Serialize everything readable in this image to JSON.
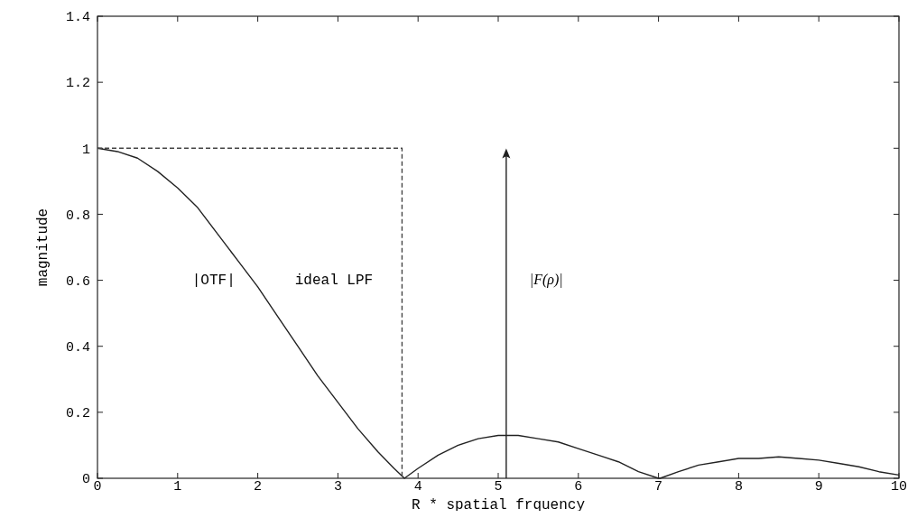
{
  "chart_data": {
    "type": "line",
    "xlabel": "R * spatial frquency",
    "ylabel": "magnitude",
    "xlim": [
      0,
      10
    ],
    "xticks": [
      0,
      1,
      2,
      3,
      4,
      5,
      6,
      7,
      8,
      9,
      10
    ],
    "ylim": [
      0,
      1.4
    ],
    "yticks": [
      0,
      0.2,
      0.4,
      0.6,
      0.8,
      1,
      1.2,
      1.4
    ],
    "grid": false,
    "series": [
      {
        "color": "#222222",
        "line_style": "solid",
        "x": [
          0,
          0.25,
          0.5,
          0.75,
          1,
          1.25,
          1.5,
          1.75,
          2,
          2.25,
          2.5,
          2.75,
          3,
          3.25,
          3.5,
          3.7,
          3.83,
          4,
          4.25,
          4.5,
          4.75,
          5,
          5.25,
          5.5,
          5.75,
          6,
          6.25,
          6.5,
          6.75,
          7,
          7.02,
          7.25,
          7.5,
          7.75,
          8,
          8.25,
          8.5,
          8.75,
          9,
          9.25,
          9.5,
          9.75,
          10
        ],
        "values": [
          1,
          0.99,
          0.97,
          0.93,
          0.88,
          0.82,
          0.74,
          0.66,
          0.58,
          0.49,
          0.4,
          0.31,
          0.23,
          0.15,
          0.08,
          0.03,
          0,
          0.03,
          0.07,
          0.1,
          0.12,
          0.13,
          0.13,
          0.12,
          0.11,
          0.09,
          0.07,
          0.05,
          0.02,
          0,
          0,
          0.02,
          0.04,
          0.05,
          0.06,
          0.06,
          0.065,
          0.06,
          0.055,
          0.045,
          0.035,
          0.02,
          0.01
        ]
      },
      {
        "color": "#444444",
        "line_style": "dashed",
        "x": [
          0,
          3.8,
          3.8
        ],
        "values": [
          1,
          1,
          0
        ]
      }
    ],
    "annotations": [
      "|OTF|",
      "ideal LPF",
      "|F(ρ)|"
    ]
  }
}
